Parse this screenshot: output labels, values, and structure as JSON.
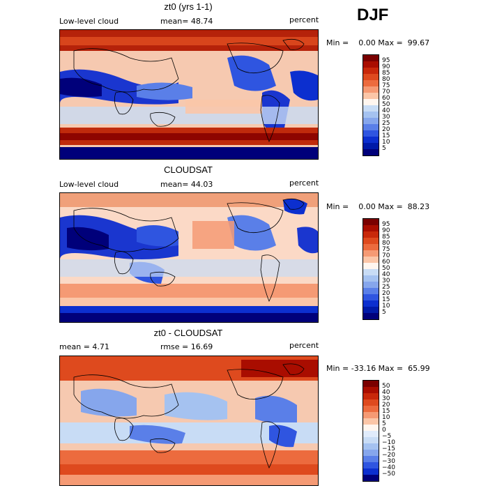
{
  "season": "DJF",
  "panels": [
    {
      "id": "p1",
      "title": "zt0 (yrs 1-1)",
      "left_label": "Low-level cloud",
      "mid_label": "mean=  48.74",
      "right_label": "percent",
      "minmax": "Min =    0.00 Max =  99.67",
      "levels": [
        "95",
        "90",
        "85",
        "80",
        "75",
        "70",
        "60",
        "50",
        "40",
        "30",
        "25",
        "20",
        "15",
        "10",
        "5"
      ],
      "colors": [
        "#7a0000",
        "#a90d00",
        "#c8280a",
        "#de4a1e",
        "#ec6b3e",
        "#f59a74",
        "#fbc6a8",
        "#fff6ef",
        "#c8dcf5",
        "#a5c2f0",
        "#86a6ec",
        "#5a7fe8",
        "#2f55e0",
        "#0c2fcf",
        "#001aa8",
        "#00007a"
      ]
    },
    {
      "id": "p2",
      "title": "CLOUDSAT",
      "left_label": "Low-level cloud",
      "mid_label": "mean=  44.03",
      "right_label": "percent",
      "minmax": "Min =    0.00 Max =  88.23",
      "levels": [
        "95",
        "90",
        "85",
        "80",
        "75",
        "70",
        "60",
        "50",
        "40",
        "30",
        "25",
        "20",
        "15",
        "10",
        "5"
      ],
      "colors": [
        "#7a0000",
        "#a90d00",
        "#c8280a",
        "#de4a1e",
        "#ec6b3e",
        "#f59a74",
        "#fbc6a8",
        "#fff6ef",
        "#c8dcf5",
        "#a5c2f0",
        "#86a6ec",
        "#5a7fe8",
        "#2f55e0",
        "#0c2fcf",
        "#001aa8",
        "#00007a"
      ]
    },
    {
      "id": "p3",
      "title": "zt0 - CLOUDSAT",
      "left_label": "mean =    4.71",
      "mid_label": "rmse =  16.69",
      "right_label": "percent",
      "minmax": "Min = -33.16 Max =  65.99",
      "levels": [
        "50",
        "40",
        "30",
        "20",
        "15",
        "10",
        "5",
        "0",
        "−5",
        "−10",
        "−15",
        "−20",
        "−30",
        "−40",
        "−50"
      ],
      "colors": [
        "#7a0000",
        "#a90d00",
        "#c8280a",
        "#de4a1e",
        "#ec6b3e",
        "#f59a74",
        "#fbc6a8",
        "#fff6ef",
        "#e0ebfb",
        "#c8dcf5",
        "#a5c2f0",
        "#86a6ec",
        "#5a7fe8",
        "#2f55e0",
        "#0c2fcf",
        "#00007a"
      ]
    }
  ]
}
